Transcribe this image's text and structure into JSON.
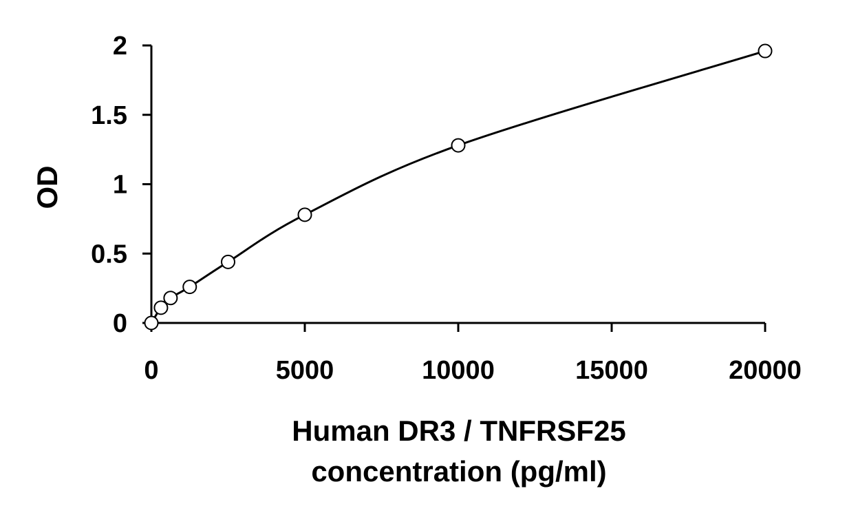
{
  "chart_data": {
    "type": "scatter",
    "title": "",
    "xlabel_lines": [
      "Human DR3 / TNFRSF25",
      "concentration (pg/ml)"
    ],
    "ylabel": "OD",
    "xlim": [
      0,
      20000
    ],
    "ylim": [
      0,
      2
    ],
    "xticks": [
      0,
      5000,
      10000,
      15000,
      20000
    ],
    "xtick_labels": [
      "0",
      "5000",
      "10000",
      "15000",
      "20000"
    ],
    "yticks": [
      0,
      0.5,
      1,
      1.5,
      2
    ],
    "ytick_labels": [
      "0",
      "0.5",
      "1",
      "1.5",
      "2"
    ],
    "grid": false,
    "legend": "none",
    "series": [
      {
        "marker": "open-circle",
        "points": [
          {
            "x": 0,
            "y": 0.0
          },
          {
            "x": 312.5,
            "y": 0.11
          },
          {
            "x": 625,
            "y": 0.18
          },
          {
            "x": 1250,
            "y": 0.26
          },
          {
            "x": 2500,
            "y": 0.44
          },
          {
            "x": 5000,
            "y": 0.78
          },
          {
            "x": 10000,
            "y": 1.28
          },
          {
            "x": 20000,
            "y": 1.96
          }
        ]
      }
    ],
    "fit_curve": true,
    "colors": {
      "line": "#000000",
      "marker_fill": "#ffffff",
      "marker_stroke": "#000000"
    }
  }
}
